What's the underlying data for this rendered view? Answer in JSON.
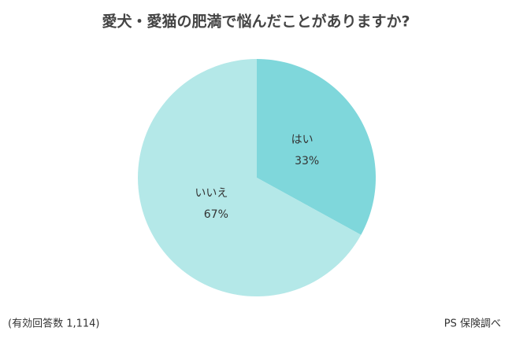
{
  "chart_data": {
    "type": "pie",
    "title": "愛犬・愛猫の肥満で悩んだことがありますか?",
    "categories": [
      "はい",
      "いいえ"
    ],
    "values": [
      33,
      67
    ],
    "value_labels": [
      "33%",
      "67%"
    ],
    "colors": [
      "#7fd7db",
      "#b4e8e8"
    ],
    "footnote": "(有効回答数 1,114)",
    "source": "PS 保険調べ"
  }
}
